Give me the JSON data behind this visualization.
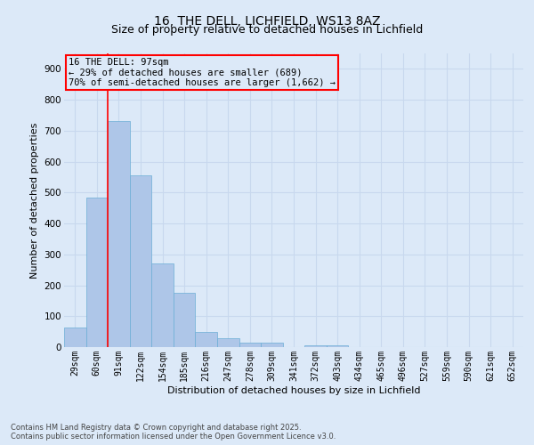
{
  "title1": "16, THE DELL, LICHFIELD, WS13 8AZ",
  "title2": "Size of property relative to detached houses in Lichfield",
  "xlabel": "Distribution of detached houses by size in Lichfield",
  "ylabel": "Number of detached properties",
  "categories": [
    "29sqm",
    "60sqm",
    "91sqm",
    "122sqm",
    "154sqm",
    "185sqm",
    "216sqm",
    "247sqm",
    "278sqm",
    "309sqm",
    "341sqm",
    "372sqm",
    "403sqm",
    "434sqm",
    "465sqm",
    "496sqm",
    "527sqm",
    "559sqm",
    "590sqm",
    "621sqm",
    "652sqm"
  ],
  "values": [
    62,
    483,
    730,
    555,
    272,
    176,
    50,
    30,
    15,
    13,
    0,
    6,
    5,
    0,
    0,
    0,
    0,
    0,
    0,
    0,
    0
  ],
  "bar_color": "#aec6e8",
  "bar_edge_color": "#6baed6",
  "grid_color": "#c8d8ee",
  "background_color": "#dce9f8",
  "red_line_index": 2,
  "annotation_text_line1": "16 THE DELL: 97sqm",
  "annotation_text_line2": "← 29% of detached houses are smaller (689)",
  "annotation_text_line3": "70% of semi-detached houses are larger (1,662) →",
  "ylim": [
    0,
    950
  ],
  "yticks": [
    0,
    100,
    200,
    300,
    400,
    500,
    600,
    700,
    800,
    900
  ],
  "footer1": "Contains HM Land Registry data © Crown copyright and database right 2025.",
  "footer2": "Contains public sector information licensed under the Open Government Licence v3.0.",
  "title_fontsize": 10,
  "subtitle_fontsize": 9,
  "tick_fontsize": 7,
  "label_fontsize": 8,
  "annotation_fontsize": 7.5
}
